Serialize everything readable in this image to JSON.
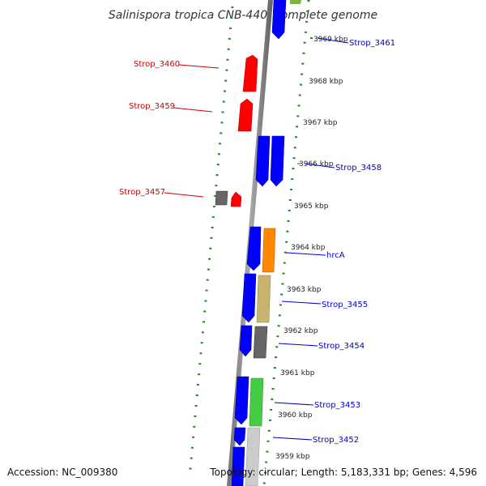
{
  "title": "Salinispora tropica CNB-440, complete genome",
  "footer": {
    "accession": "Accession: NC_009380",
    "topology": "Topology: circular; Length: 5,183,331 bp; Genes: 4,596"
  },
  "scale": {
    "labels": [
      "3969 kbp",
      "3968 kbp",
      "3967 kbp",
      "3966 kbp",
      "3965 kbp",
      "3964 kbp",
      "3963 kbp",
      "3962 kbp",
      "3961 kbp",
      "3960 kbp",
      "3959 kbp"
    ]
  },
  "gene_labels": {
    "left": [
      "Strop_3460",
      "Strop_3459",
      "Strop_3457"
    ],
    "right": [
      "Strop_3461",
      "Strop_3458",
      "hrcA",
      "Strop_3455",
      "Strop_3454",
      "Strop_3453",
      "Strop_3452"
    ]
  },
  "colors": {
    "forward_strand": "#ff0000",
    "reverse_strand": "#0000ff",
    "hrcA": "#ff8800",
    "tan": "#c8b46e",
    "gray": "#666666",
    "green": "#44cc44",
    "light_gray": "#cccccc",
    "dotted_ring": "#228822",
    "left_label_color": "#cc0000",
    "right_label_color": "#0000cc"
  },
  "legend": []
}
